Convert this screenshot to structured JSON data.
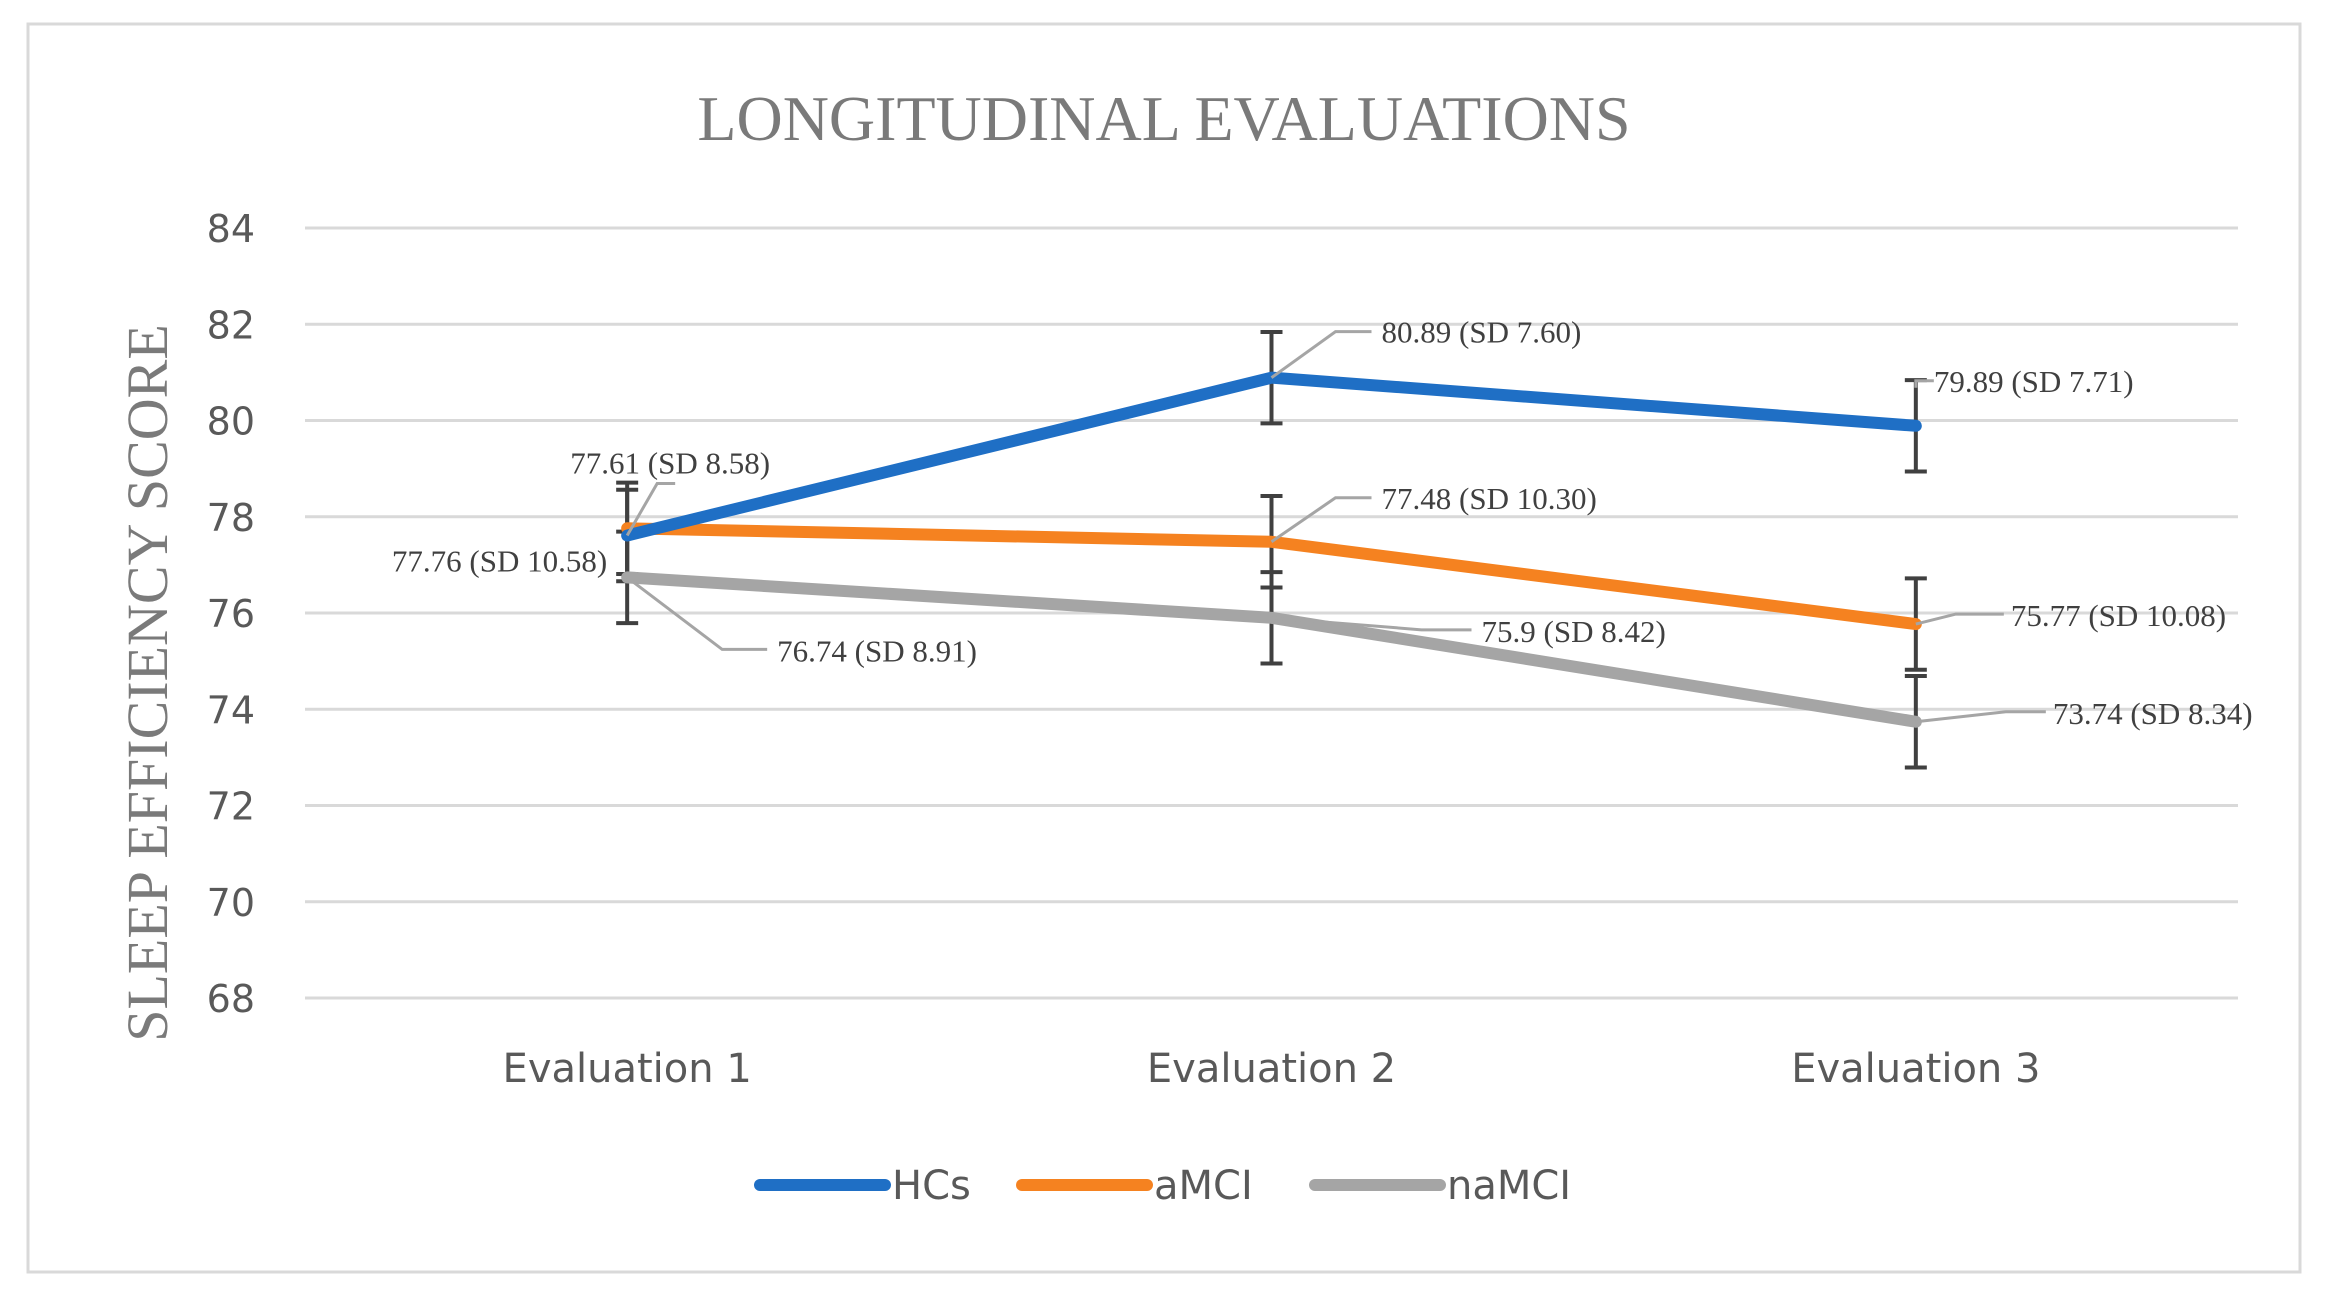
{
  "chart_data": {
    "type": "line",
    "title": "LONGITUDINAL EVALUATIONS",
    "xlabel": "",
    "ylabel": "SLEEP EFFICIENCY SCORE",
    "ylim": [
      68,
      84
    ],
    "yticks": [
      68,
      70,
      72,
      74,
      76,
      78,
      80,
      82,
      84
    ],
    "grid": true,
    "legend_position": "bottom",
    "categories": [
      "Evaluation 1",
      "Evaluation 2",
      "Evaluation 3"
    ],
    "error_bar_halfwidth": 0.95,
    "series": [
      {
        "name": "HCs",
        "color": "#1f6fc5",
        "values": [
          77.61,
          80.89,
          79.89
        ],
        "labels": [
          "77.61 (SD 8.58)",
          "80.89 (SD 7.60)",
          "79.89 (SD 7.71)"
        ]
      },
      {
        "name": "aMCI",
        "color": "#f58220",
        "values": [
          77.76,
          77.48,
          75.77
        ],
        "labels": [
          "77.76 (SD 10.58)",
          "77.48 (SD 10.30)",
          "75.77 (SD 10.08)"
        ]
      },
      {
        "name": "naMCI",
        "color": "#a5a5a5",
        "values": [
          76.74,
          75.9,
          73.74
        ],
        "labels": [
          "76.74 (SD 8.91)",
          "75.9 (SD 8.42)",
          "73.74 (SD 8.34)"
        ]
      }
    ]
  }
}
